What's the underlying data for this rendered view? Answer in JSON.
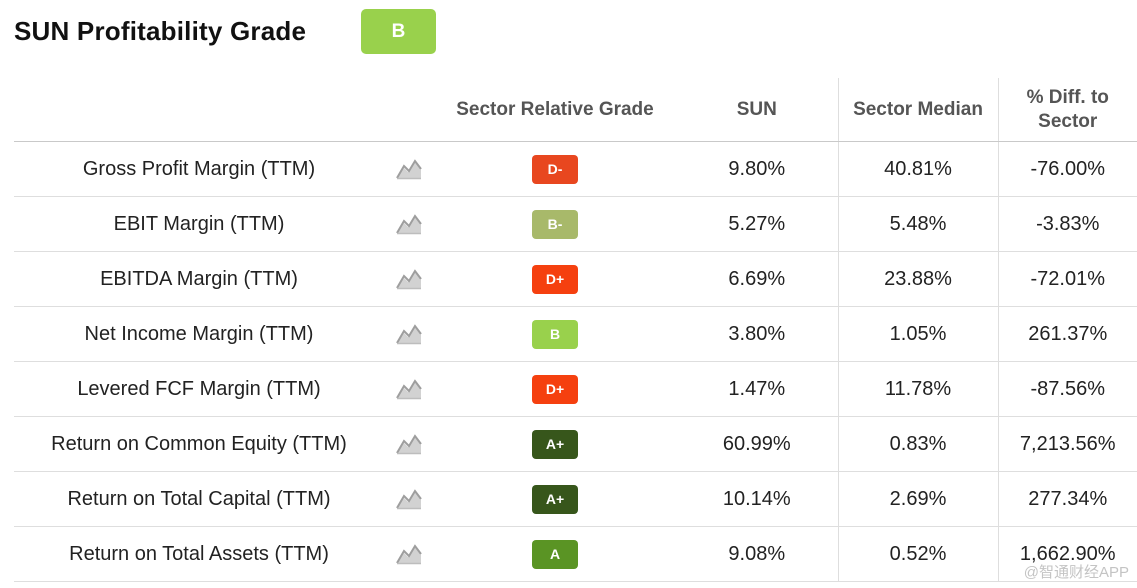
{
  "header": {
    "title": "SUN Profitability Grade",
    "overall_grade": "B",
    "overall_grade_color": "#99d14c"
  },
  "table": {
    "columns": {
      "metric": "",
      "chart": "",
      "sector_relative_grade": "Sector Relative Grade",
      "company": "SUN",
      "sector_median": "Sector Median",
      "diff_to_sector": "% Diff. to Sector"
    },
    "rows": [
      {
        "metric": "Gross Profit Margin (TTM)",
        "icon": "chart-icon",
        "grade": "D-",
        "grade_color": "#e8471f",
        "sun": "9.80%",
        "sector_median": "40.81%",
        "diff": "-76.00%"
      },
      {
        "metric": "EBIT Margin (TTM)",
        "icon": "chart-icon",
        "grade": "B-",
        "grade_color": "#a8b96a",
        "sun": "5.27%",
        "sector_median": "5.48%",
        "diff": "-3.83%"
      },
      {
        "metric": "EBITDA Margin (TTM)",
        "icon": "chart-icon",
        "grade": "D+",
        "grade_color": "#f5400f",
        "sun": "6.69%",
        "sector_median": "23.88%",
        "diff": "-72.01%"
      },
      {
        "metric": "Net Income Margin (TTM)",
        "icon": "chart-icon",
        "grade": "B",
        "grade_color": "#99d14c",
        "sun": "3.80%",
        "sector_median": "1.05%",
        "diff": "261.37%"
      },
      {
        "metric": "Levered FCF Margin (TTM)",
        "icon": "chart-icon",
        "grade": "D+",
        "grade_color": "#f5400f",
        "sun": "1.47%",
        "sector_median": "11.78%",
        "diff": "-87.56%"
      },
      {
        "metric": "Return on Common Equity (TTM)",
        "icon": "chart-icon",
        "grade": "A+",
        "grade_color": "#37561b",
        "sun": "60.99%",
        "sector_median": "0.83%",
        "diff": "7,213.56%"
      },
      {
        "metric": "Return on Total Capital (TTM)",
        "icon": "chart-icon",
        "grade": "A+",
        "grade_color": "#37561b",
        "sun": "10.14%",
        "sector_median": "2.69%",
        "diff": "277.34%"
      },
      {
        "metric": "Return on Total Assets (TTM)",
        "icon": "chart-icon",
        "grade": "A",
        "grade_color": "#5a9424",
        "sun": "9.08%",
        "sector_median": "0.52%",
        "diff": "1,662.90%"
      }
    ]
  },
  "watermark": "@智通财经APP"
}
